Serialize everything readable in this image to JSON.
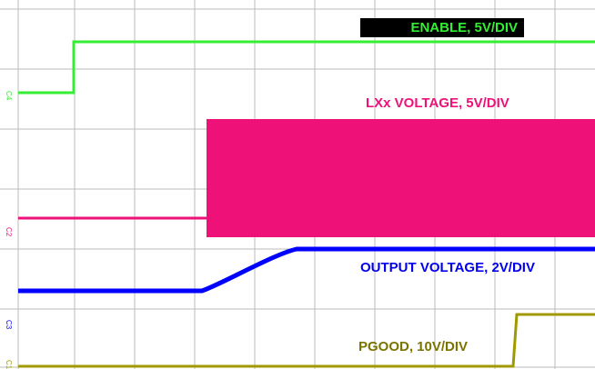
{
  "traces": [
    {
      "label": "ENABLE, 5V/DIV",
      "marker": "C4"
    },
    {
      "label": "LXx VOLTAGE, 5V/DIV",
      "marker": "C2"
    },
    {
      "label": "OUTPUT VOLTAGE, 2V/DIV",
      "marker": "C3"
    },
    {
      "label": "PGOOD, 10V/DIV",
      "marker": "C1"
    }
  ]
}
